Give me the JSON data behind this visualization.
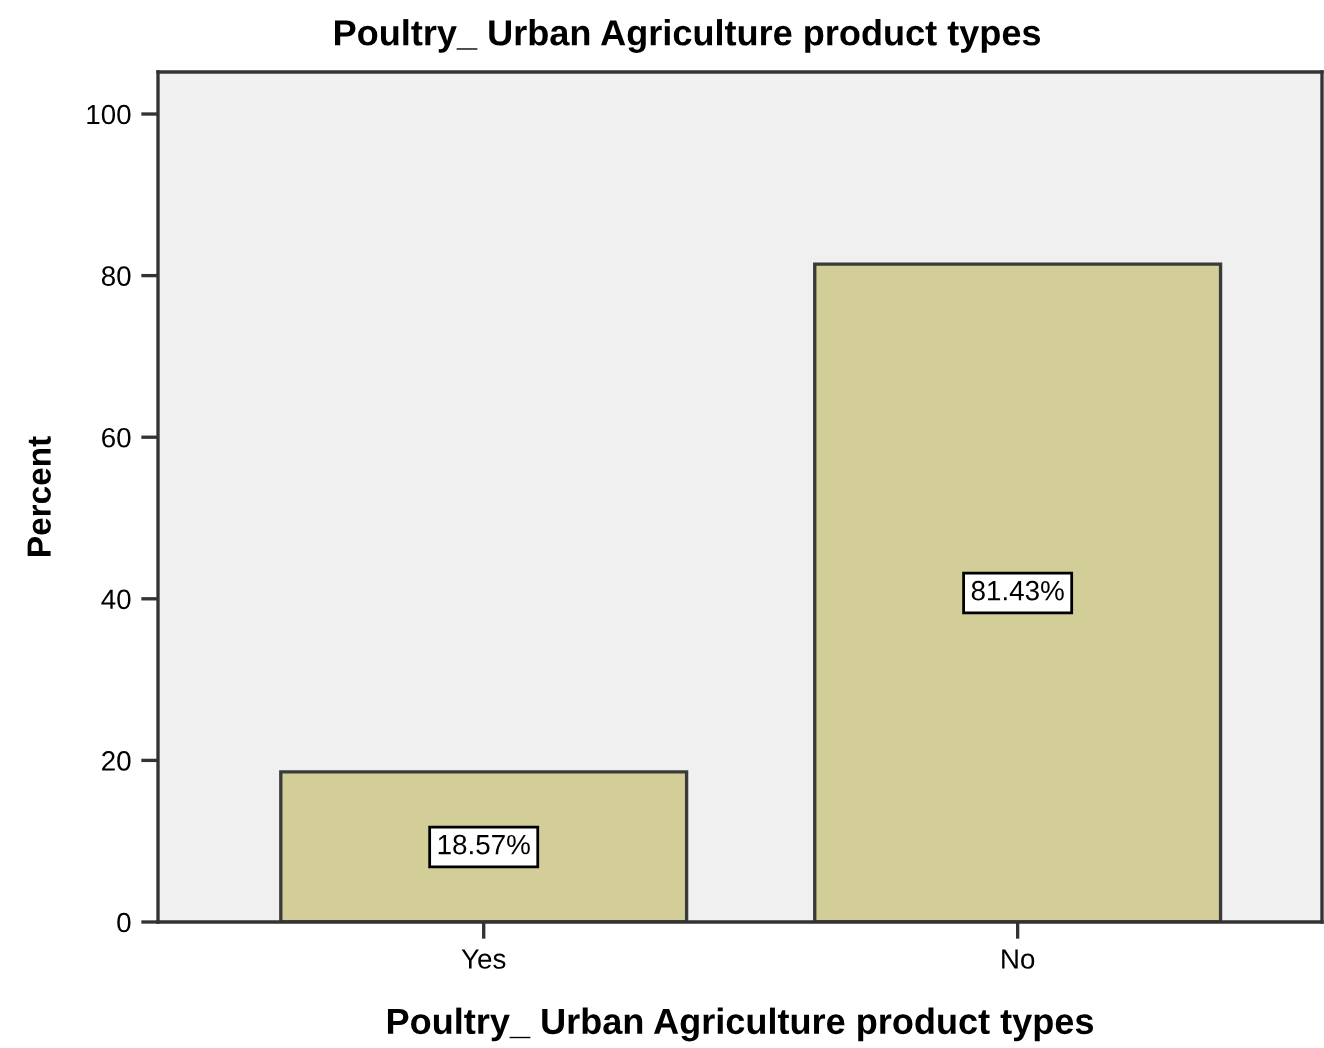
{
  "chart_data": {
    "type": "bar",
    "title": "Poultry_ Urban Agriculture product types",
    "xlabel": "Poultry_ Urban Agriculture product types",
    "ylabel": "Percent",
    "categories": [
      "Yes",
      "No"
    ],
    "values": [
      18.57,
      81.43
    ],
    "value_labels": [
      "18.57%",
      "81.43%"
    ],
    "color": "#d3ce97",
    "ylim": [
      0,
      105.2
    ],
    "yticks": [
      0,
      20,
      40,
      60,
      80,
      100
    ],
    "grid": false,
    "legend": false
  }
}
